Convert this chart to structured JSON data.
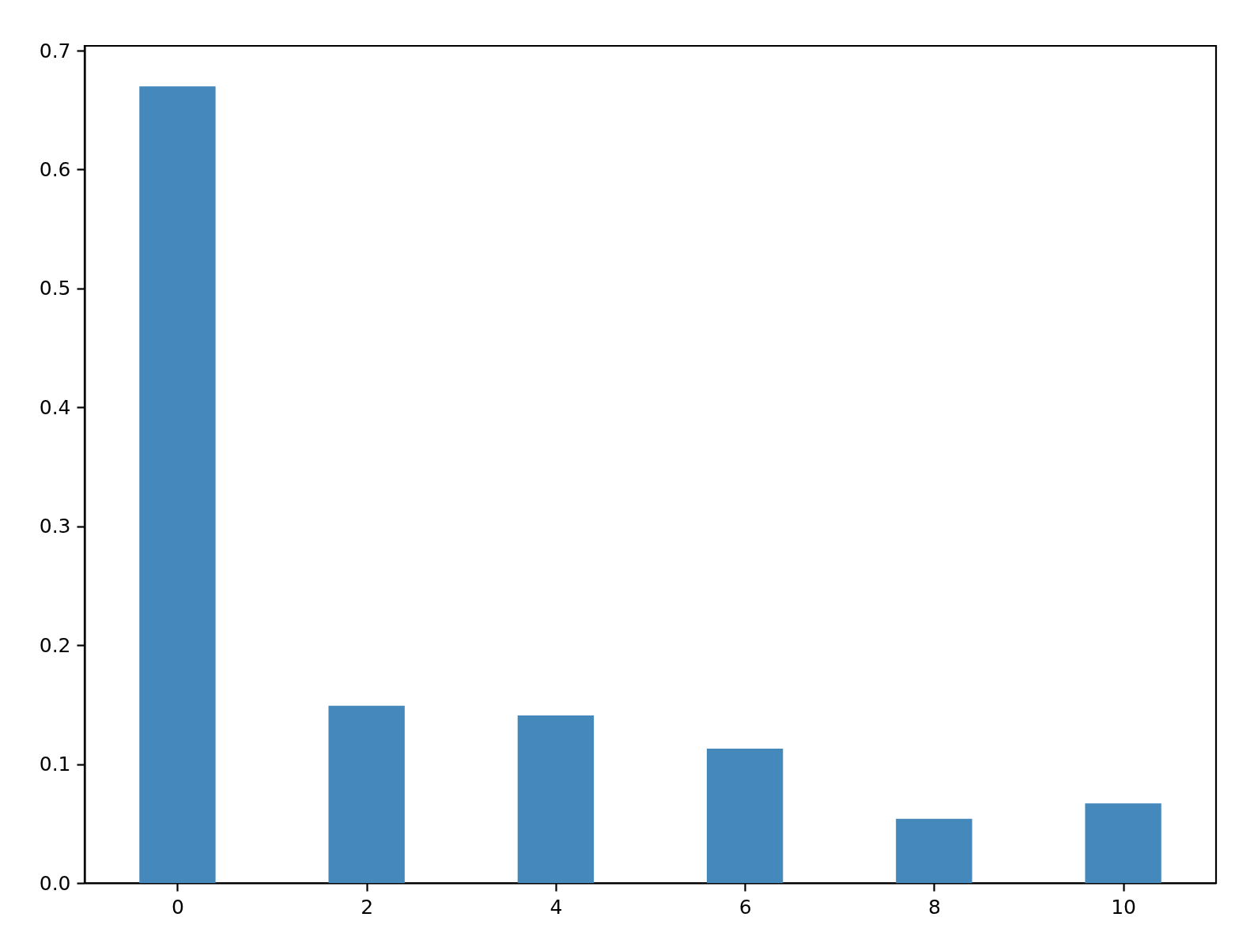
{
  "chart_data": {
    "type": "bar",
    "x": [
      0,
      2,
      4,
      6,
      8,
      10
    ],
    "values": [
      0.67,
      0.149,
      0.141,
      0.113,
      0.054,
      0.067
    ],
    "color": "#4589bc",
    "xlim": [
      -0.94,
      10.94
    ],
    "ylim": [
      0,
      0.704
    ],
    "xticks": [
      0,
      2,
      4,
      6,
      8,
      10
    ],
    "yticks": [
      {
        "value": 0,
        "label": "0.0"
      },
      0.1,
      0.2,
      0.3,
      0.4,
      0.5,
      0.6,
      0.7
    ]
  }
}
